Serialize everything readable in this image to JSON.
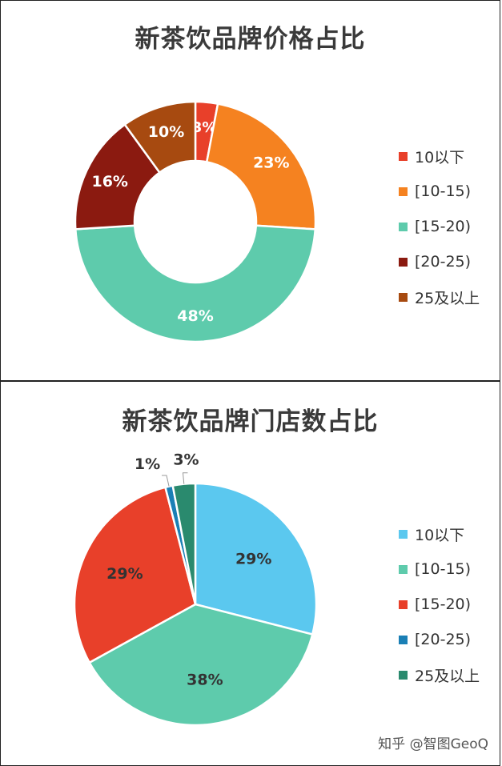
{
  "credit": "知乎 @智图GeoQ",
  "chart_data": [
    {
      "type": "pie",
      "variant": "donut",
      "title": "新茶饮品牌价格占比",
      "categories": [
        "10以下",
        "[10-15)",
        "[15-20)",
        "[20-25)",
        "25及以上"
      ],
      "values": [
        3,
        23,
        48,
        16,
        10
      ],
      "labels": [
        "3%",
        "23%",
        "48%",
        "16%",
        "10%"
      ],
      "colors": [
        "#e8402a",
        "#f58220",
        "#5ecbac",
        "#8b1a10",
        "#a74a10"
      ],
      "legend": "right"
    },
    {
      "type": "pie",
      "title": "新茶饮品牌门店数占比",
      "categories": [
        "10以下",
        "[10-15)",
        "[15-20)",
        "[20-25)",
        "25及以上"
      ],
      "values": [
        29,
        38,
        29,
        1,
        3
      ],
      "labels": [
        "29%",
        "38%",
        "29%",
        "1%",
        "3%"
      ],
      "colors": [
        "#5bc8ef",
        "#5ecbac",
        "#e8402a",
        "#1a7fb5",
        "#2a8a6e"
      ],
      "legend": "right"
    }
  ]
}
